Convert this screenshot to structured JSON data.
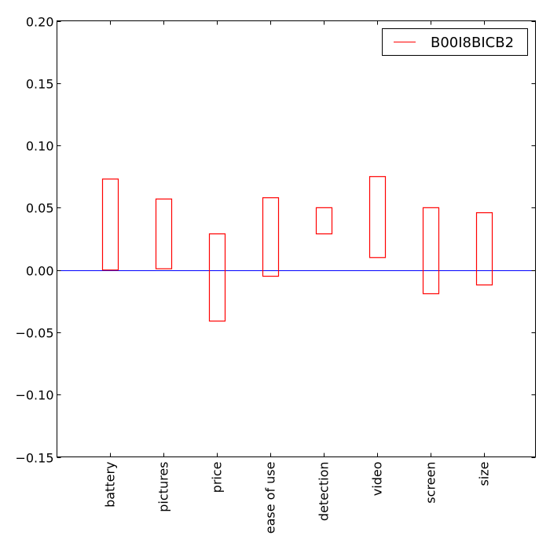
{
  "chart_data": {
    "type": "bar",
    "title": "",
    "xlabel": "",
    "ylabel": "",
    "categories": [
      "battery",
      "pictures",
      "price",
      "ease of use",
      "detection",
      "video",
      "screen",
      "size"
    ],
    "series": [
      {
        "name": "B00I8BICB2",
        "color": "#ff0000",
        "ranges": [
          [
            0.0,
            0.073
          ],
          [
            0.001,
            0.057
          ],
          [
            -0.041,
            0.029
          ],
          [
            -0.005,
            0.058
          ],
          [
            0.029,
            0.05
          ],
          [
            0.01,
            0.075
          ],
          [
            -0.019,
            0.05
          ],
          [
            -0.012,
            0.046
          ]
        ]
      }
    ],
    "ylim": [
      -0.15,
      0.2
    ],
    "yticks": [
      "0.20",
      "0.15",
      "0.10",
      "0.05",
      "0.00",
      "−0.05",
      "−0.10",
      "−0.15"
    ],
    "ytick_values": [
      0.2,
      0.15,
      0.1,
      0.05,
      0.0,
      -0.05,
      -0.1,
      -0.15
    ],
    "zero_line_color": "#0000ff",
    "grid": false,
    "legend_position": "top-right"
  }
}
